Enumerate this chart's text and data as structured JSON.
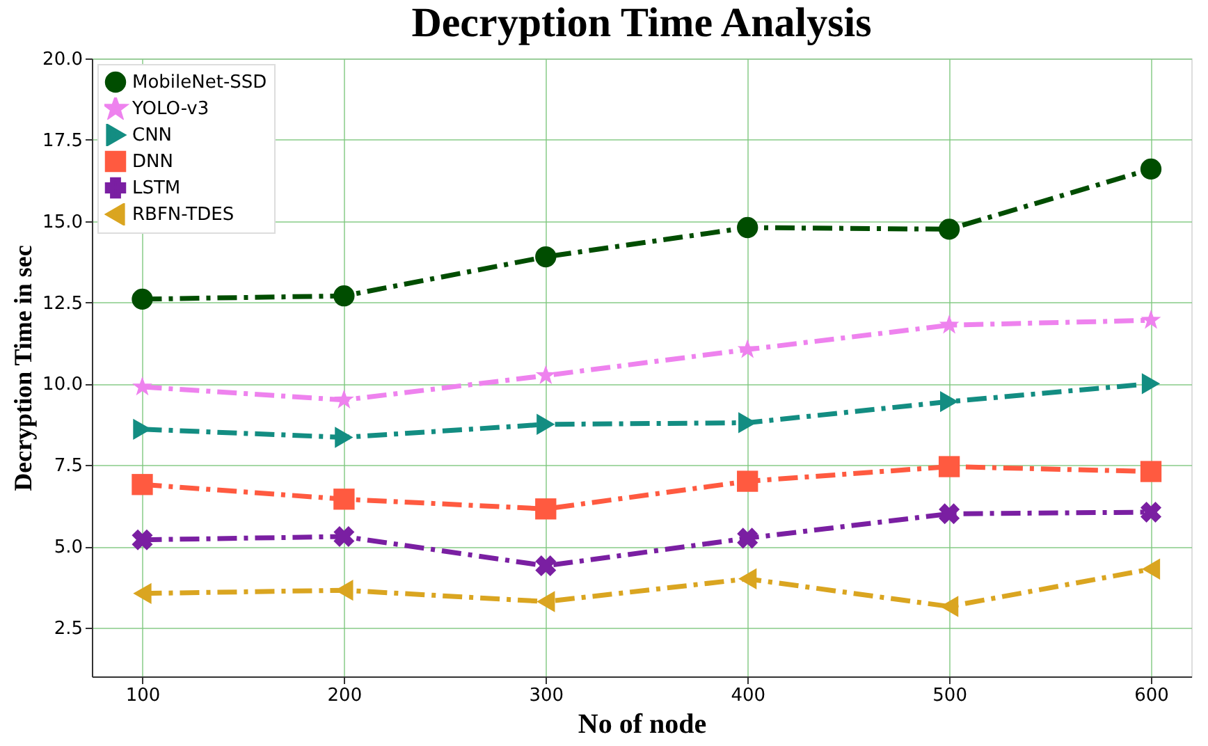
{
  "chart_data": {
    "type": "line",
    "title": "Decryption Time Analysis",
    "xlabel": "No of node",
    "ylabel": "Decryption Time in sec",
    "x": [
      100,
      200,
      300,
      400,
      500,
      600
    ],
    "xlim": [
      75,
      620
    ],
    "xticks": [
      100,
      200,
      300,
      400,
      500,
      600
    ],
    "ylim": [
      1.0,
      20.0
    ],
    "yticks": [
      {
        "value": 2.5,
        "label": "2.5"
      },
      {
        "value": 5,
        "label": "5.0"
      },
      {
        "value": 7.5,
        "label": "7.5"
      },
      {
        "value": 10,
        "label": "10.0"
      },
      {
        "value": 12.5,
        "label": "12.5"
      },
      {
        "value": 15,
        "label": "15.0"
      },
      {
        "value": 17.5,
        "label": "17.5"
      },
      {
        "value": 20,
        "label": "20.0"
      }
    ],
    "grid": true,
    "legend": "top left",
    "line_style": "dashed",
    "series": [
      {
        "name": "MobileNet-SSD",
        "color": "#004d00",
        "marker": "circle",
        "values": [
          12.6,
          12.7,
          13.9,
          14.8,
          14.75,
          16.6
        ]
      },
      {
        "name": "YOLO-v3",
        "color": "#ee82ee",
        "marker": "star",
        "values": [
          9.9,
          9.5,
          10.25,
          11.05,
          11.8,
          11.95
        ]
      },
      {
        "name": "CNN",
        "color": "#138d82",
        "marker": "triangle-right",
        "values": [
          8.6,
          8.35,
          8.75,
          8.8,
          9.45,
          10.0
        ]
      },
      {
        "name": "DNN",
        "color": "#ff5a40",
        "marker": "square",
        "values": [
          6.9,
          6.45,
          6.15,
          7.0,
          7.45,
          7.3
        ]
      },
      {
        "name": "LSTM",
        "color": "#7a1fa2",
        "marker": "cross",
        "values": [
          5.2,
          5.3,
          4.4,
          5.25,
          6.0,
          6.05
        ]
      },
      {
        "name": "RBFN-TDES",
        "color": "#daa520",
        "marker": "triangle-left",
        "values": [
          3.55,
          3.65,
          3.3,
          4.0,
          3.15,
          4.3
        ]
      }
    ]
  }
}
